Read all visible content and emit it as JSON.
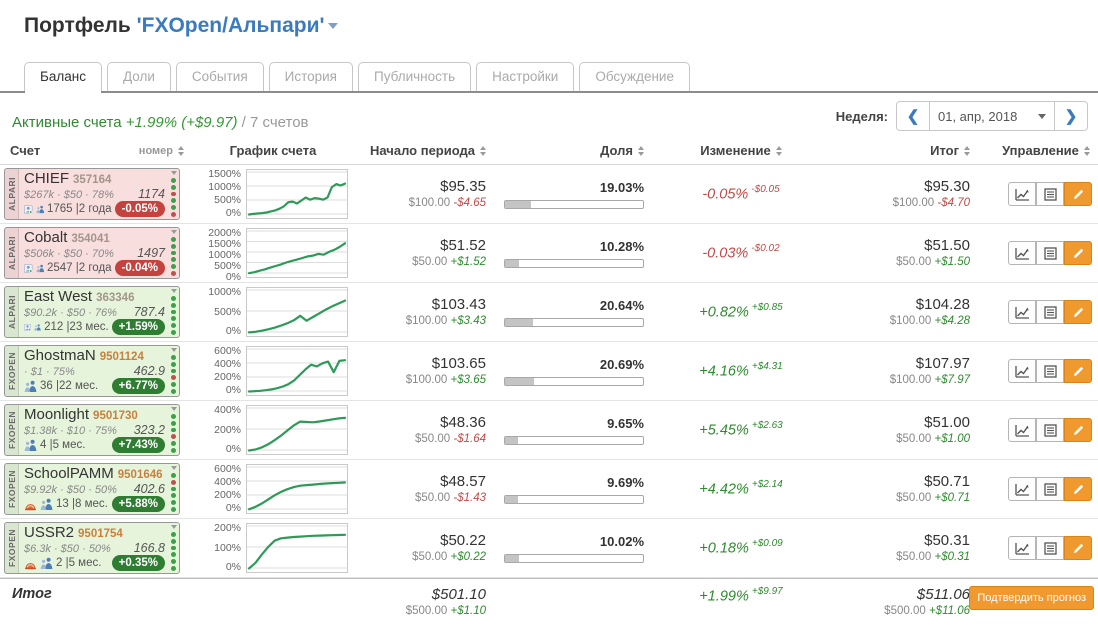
{
  "page": {
    "title_prefix": "Портфель",
    "title_name": "'FXOpen/Альпари'"
  },
  "tabs": [
    {
      "label": "Баланс",
      "active": true
    },
    {
      "label": "Доли",
      "active": false
    },
    {
      "label": "События",
      "active": false
    },
    {
      "label": "История",
      "active": false
    },
    {
      "label": "Публичность",
      "active": false
    },
    {
      "label": "Настройки",
      "active": false
    },
    {
      "label": "Обсуждение",
      "active": false
    }
  ],
  "summary": {
    "label": "Активные счета",
    "change": "+1.99% (+$9.97)",
    "count": "/ 7 счетов"
  },
  "week": {
    "label": "Неделя:",
    "prev": "❮",
    "value": "01, апр, 2018",
    "next": "❯"
  },
  "table_headers": [
    {
      "label": "Счет",
      "sortable": false,
      "align": "a-left"
    },
    {
      "label": "номер",
      "sortable": true,
      "align": "a-left",
      "small": true,
      "label2": "График счета"
    },
    {
      "label": "Начало периода",
      "sortable": true,
      "align": "a-right"
    },
    {
      "label": "Доля",
      "sortable": true,
      "align": "a-right"
    },
    {
      "label": "Изменение",
      "sortable": true,
      "align": "a-center"
    },
    {
      "label": "Итог",
      "sortable": true,
      "align": "a-right"
    },
    {
      "label": "Управление",
      "sortable": true,
      "align": "a-center"
    }
  ],
  "accounts": [
    {
      "broker": "ALPARI",
      "name": "CHIEF",
      "number": "357164",
      "number_class": "alpari",
      "stats": "$267k · $50 · 78%",
      "equity": "1174",
      "members": "1765 |2 года",
      "icons": [
        "trader",
        "investors"
      ],
      "badge": "-0.05%",
      "badge_type": "neg",
      "card_type": "neg",
      "dots": [
        "g",
        "g",
        "r",
        "g",
        "g",
        "r"
      ],
      "chart": {
        "labels": [
          "1500%",
          "1000%",
          "500%",
          "0%"
        ],
        "max": 1500,
        "values": [
          20,
          40,
          55,
          70,
          90,
          130,
          170,
          230,
          320,
          470,
          490,
          420,
          530,
          640,
          560,
          620,
          600,
          560,
          640,
          1020,
          1130,
          1080,
          1150
        ]
      },
      "start": {
        "value": "$95.35",
        "base": "$100.00",
        "delta": "-$4.65",
        "delta_type": "neg"
      },
      "share": {
        "pct": "19.03%",
        "fill": 19.03
      },
      "change": {
        "pct": "-0.05%",
        "amt": "-$0.05",
        "type": "neg"
      },
      "total": {
        "value": "$95.30",
        "base": "$100.00",
        "delta": "-$4.70",
        "delta_type": "neg"
      }
    },
    {
      "broker": "ALPARI",
      "name": "Cobalt",
      "number": "354041",
      "number_class": "alpari",
      "stats": "$506k · $50 · 70%",
      "equity": "1497",
      "members": "2547 |2 года",
      "icons": [
        "trader",
        "investors"
      ],
      "badge": "-0.04%",
      "badge_type": "neg",
      "card_type": "neg",
      "dots": [
        "g",
        "g",
        "g",
        "g",
        "g",
        "r"
      ],
      "chart": {
        "labels": [
          "2000%",
          "1500%",
          "1000%",
          "500%",
          "0%"
        ],
        "max": 2000,
        "values": [
          40,
          90,
          160,
          230,
          310,
          390,
          470,
          560,
          640,
          700,
          780,
          860,
          900,
          980,
          940,
          1080,
          1180,
          1320,
          1500
        ]
      },
      "start": {
        "value": "$51.52",
        "base": "$50.00",
        "delta": "+$1.52",
        "delta_type": "pos"
      },
      "share": {
        "pct": "10.28%",
        "fill": 10.28
      },
      "change": {
        "pct": "-0.03%",
        "amt": "-$0.02",
        "type": "neg"
      },
      "total": {
        "value": "$51.50",
        "base": "$50.00",
        "delta": "+$1.50",
        "delta_type": "pos"
      }
    },
    {
      "broker": "ALPARI",
      "name": "East West",
      "number": "363346",
      "number_class": "alpari",
      "stats": "$90.2k · $50 · 76%",
      "equity": "787.4",
      "members": "212 |23 мес.",
      "icons": [
        "trader",
        "investors"
      ],
      "badge": "+1.59%",
      "badge_type": "pos",
      "card_type": "pos",
      "dots": [
        "g",
        "g",
        "g",
        "g",
        "g",
        "g"
      ],
      "chart": {
        "labels": [
          "1000%",
          "500%",
          "0%"
        ],
        "max": 1000,
        "values": [
          15,
          30,
          55,
          90,
          130,
          180,
          240,
          310,
          420,
          300,
          390,
          480,
          570,
          650,
          720,
          790
        ]
      },
      "start": {
        "value": "$103.43",
        "base": "$100.00",
        "delta": "+$3.43",
        "delta_type": "pos"
      },
      "share": {
        "pct": "20.64%",
        "fill": 20.64
      },
      "change": {
        "pct": "+0.82%",
        "amt": "+$0.85",
        "type": "pos"
      },
      "total": {
        "value": "$104.28",
        "base": "$100.00",
        "delta": "+$4.28",
        "delta_type": "pos"
      }
    },
    {
      "broker": "FXOPEN",
      "name": "GhostmaN",
      "number": "9501124",
      "number_class": "fxopen",
      "stats": "· $1 · 75%",
      "equity": "462.9",
      "members": "36 |22 мес.",
      "icons": [
        "investors"
      ],
      "badge": "+6.77%",
      "badge_type": "pos",
      "card_type": "pos",
      "dots": [
        "g",
        "g",
        "g",
        "r",
        "g",
        "g"
      ],
      "chart": {
        "labels": [
          "600%",
          "400%",
          "200%",
          "0%"
        ],
        "max": 600,
        "values": [
          8,
          12,
          18,
          26,
          38,
          55,
          80,
          115,
          170,
          250,
          330,
          400,
          375,
          420,
          445,
          290,
          455,
          465
        ]
      },
      "start": {
        "value": "$103.65",
        "base": "$100.00",
        "delta": "+$3.65",
        "delta_type": "pos"
      },
      "share": {
        "pct": "20.69%",
        "fill": 20.69
      },
      "change": {
        "pct": "+4.16%",
        "amt": "+$4.31",
        "type": "pos"
      },
      "total": {
        "value": "$107.97",
        "base": "$100.00",
        "delta": "+$7.97",
        "delta_type": "pos"
      }
    },
    {
      "broker": "FXOPEN",
      "name": "Moonlight",
      "number": "9501730",
      "number_class": "fxopen",
      "stats": "$1.38k · $10 · 75%",
      "equity": "323.2",
      "members": "4 |5 мес.",
      "icons": [
        "investors"
      ],
      "badge": "+7.43%",
      "badge_type": "pos",
      "card_type": "pos",
      "dots": [
        "g",
        "g",
        "g",
        "r",
        "g",
        "g"
      ],
      "chart": {
        "labels": [
          "400%",
          "200%",
          "0%"
        ],
        "max": 400,
        "values": [
          5,
          15,
          35,
          65,
          105,
          150,
          200,
          250,
          287,
          283,
          280,
          288,
          298,
          308,
          318,
          323
        ]
      },
      "start": {
        "value": "$48.36",
        "base": "$50.00",
        "delta": "-$1.64",
        "delta_type": "neg"
      },
      "share": {
        "pct": "9.65%",
        "fill": 9.65
      },
      "change": {
        "pct": "+5.45%",
        "amt": "+$2.63",
        "type": "pos"
      },
      "total": {
        "value": "$51.00",
        "base": "$50.00",
        "delta": "+$1.00",
        "delta_type": "pos"
      }
    },
    {
      "broker": "FXOPEN",
      "name": "SchoolPAMM",
      "number": "9501646",
      "number_class": "fxopen",
      "stats": "$9.92k · $50 · 50%",
      "equity": "402.6",
      "members": "13 |8 мес.",
      "icons": [
        "closed",
        "investors"
      ],
      "badge": "+5.88%",
      "badge_type": "pos",
      "card_type": "pos",
      "dots": [
        "g",
        "r",
        "g",
        "g",
        "g",
        "g"
      ],
      "chart": {
        "labels": [
          "600%",
          "400%",
          "200%",
          "0%"
        ],
        "max": 600,
        "values": [
          10,
          45,
          95,
          155,
          215,
          265,
          305,
          335,
          355,
          365,
          372,
          380,
          388,
          394,
          398,
          403
        ]
      },
      "start": {
        "value": "$48.57",
        "base": "$50.00",
        "delta": "-$1.43",
        "delta_type": "neg"
      },
      "share": {
        "pct": "9.69%",
        "fill": 9.69
      },
      "change": {
        "pct": "+4.42%",
        "amt": "+$2.14",
        "type": "pos"
      },
      "total": {
        "value": "$50.71",
        "base": "$50.00",
        "delta": "+$0.71",
        "delta_type": "pos"
      }
    },
    {
      "broker": "FXOPEN",
      "name": "USSR2",
      "number": "9501754",
      "number_class": "fxopen",
      "stats": "$6.3k · $50 · 50%",
      "equity": "166.8",
      "members": "2 |5 мес.",
      "icons": [
        "closed",
        "investors"
      ],
      "badge": "+0.35%",
      "badge_type": "pos",
      "card_type": "pos",
      "dots": [
        "g",
        "g",
        "g",
        "g",
        "g",
        "g"
      ],
      "chart": {
        "labels": [
          "200%",
          "100%",
          "0%"
        ],
        "max": 200,
        "values": [
          3,
          30,
          70,
          108,
          138,
          150,
          153,
          156,
          158,
          160,
          162,
          163,
          164,
          165,
          166,
          167
        ]
      },
      "start": {
        "value": "$50.22",
        "base": "$50.00",
        "delta": "+$0.22",
        "delta_type": "pos"
      },
      "share": {
        "pct": "10.02%",
        "fill": 10.02
      },
      "change": {
        "pct": "+0.18%",
        "amt": "+$0.09",
        "type": "pos"
      },
      "total": {
        "value": "$50.31",
        "base": "$50.00",
        "delta": "+$0.31",
        "delta_type": "pos"
      }
    }
  ],
  "footer": {
    "label": "Итог",
    "start": {
      "value": "$501.10",
      "base": "$500.00",
      "delta": "+$1.10",
      "delta_type": "pos"
    },
    "change": {
      "pct": "+1.99%",
      "amt": "+$9.97",
      "type": "pos"
    },
    "total": {
      "value": "$511.06",
      "base": "$500.00",
      "delta": "+$11.06",
      "delta_type": "pos"
    },
    "confirm_label": "Подтвердить прогноз"
  },
  "colors": {
    "accent_blue": "#3a7bbf",
    "positive": "#2e8b2e",
    "negative": "#bf4a46",
    "badge_pos": "#2f7d32",
    "badge_neg": "#c5433f",
    "orange_button": "#f0992e",
    "chart_line": "#2d9b57",
    "card_neg_bg": "#f9dede",
    "card_pos_bg": "#e6f4dc"
  }
}
